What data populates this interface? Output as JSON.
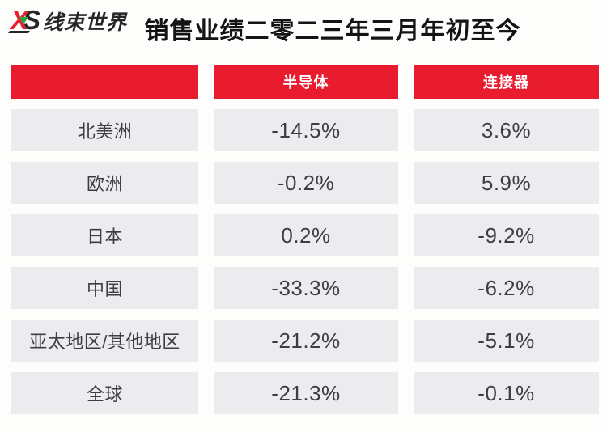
{
  "brand": {
    "x": "X",
    "s": "S",
    "name": "线束世界",
    "accent_red": "#e81b2f",
    "accent_green": "#2fa23c",
    "dark": "#262626"
  },
  "page_title": "销售业绩二零二三年三月年初至今",
  "table": {
    "headers": {
      "region": "",
      "semiconductor": "半导体",
      "connector": "连接器"
    },
    "rows": [
      {
        "region": "北美洲",
        "semiconductor": "-14.5%",
        "connector": "3.6%"
      },
      {
        "region": "欧洲",
        "semiconductor": "-0.2%",
        "connector": "5.9%"
      },
      {
        "region": "日本",
        "semiconductor": "0.2%",
        "connector": "-9.2%"
      },
      {
        "region": "中国",
        "semiconductor": "-33.3%",
        "connector": "-6.2%"
      },
      {
        "region": "亚太地区/其他地区",
        "semiconductor": "-21.2%",
        "connector": "-5.1%"
      },
      {
        "region": "全球",
        "semiconductor": "-21.3%",
        "connector": "-0.1%"
      }
    ]
  },
  "colors": {
    "header_bg": "#e81b2f",
    "cell_bg": "#ececee",
    "cell_text": "#3e3e42",
    "title_text": "#141414",
    "page_bg": "#fdfdfc"
  },
  "chart_data": {
    "type": "table",
    "title": "销售业绩二零二三年三月年初至今",
    "categories": [
      "北美洲",
      "欧洲",
      "日本",
      "中国",
      "亚太地区/其他地区",
      "全球"
    ],
    "series": [
      {
        "name": "半导体",
        "values": [
          -14.5,
          -0.2,
          0.2,
          -33.3,
          -21.2,
          -21.3
        ]
      },
      {
        "name": "连接器",
        "values": [
          3.6,
          5.9,
          -9.2,
          -6.2,
          -5.1,
          -0.1
        ]
      }
    ],
    "unit": "%"
  }
}
